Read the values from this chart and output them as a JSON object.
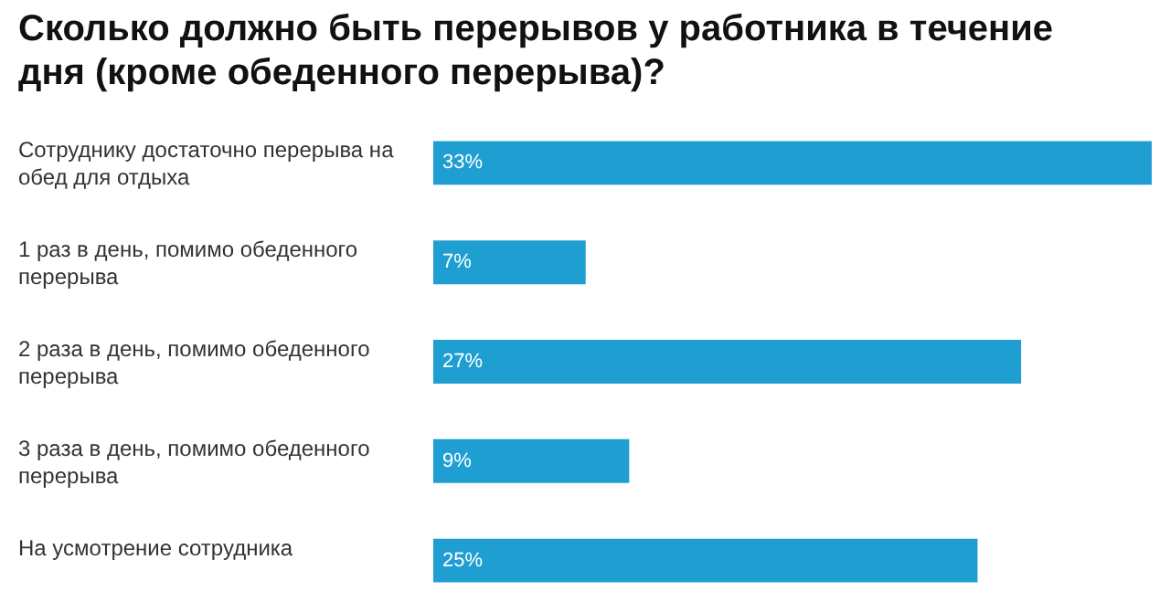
{
  "chart_data": {
    "type": "bar",
    "orientation": "horizontal",
    "title": "Сколько должно быть перерывов у работника в течение дня (кроме обеденного перерыва)?",
    "categories": [
      "Сотруднику достаточно перерыва на обед для отдыха",
      "1 раз в день, помимо обеденного перерыва",
      "2 раза в день, помимо обеденного перерыва",
      "3 раза в день, помимо обеденного перерыва",
      "На усмотрение сотрудника"
    ],
    "values": [
      33,
      7,
      27,
      9,
      25
    ],
    "value_labels": [
      "33%",
      "7%",
      "27%",
      "9%",
      "25%"
    ],
    "color": "#1f9fd1"
  }
}
